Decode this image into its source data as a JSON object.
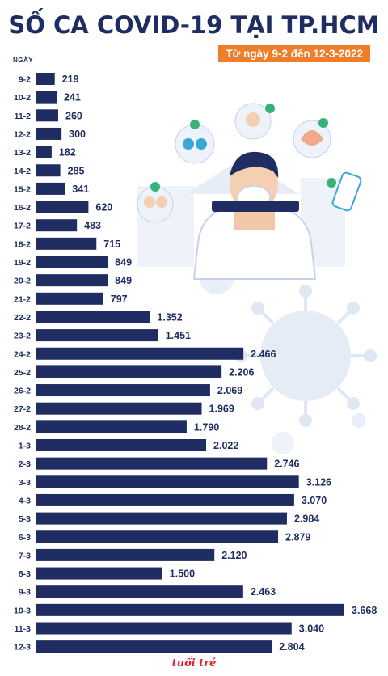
{
  "title": "SỐ CA COVID-19 TẠI TP.HCM",
  "subtitle": "Từ ngày 9-2 đến 12-3-2022",
  "colors": {
    "title": "#1f2d63",
    "bar": "#1f2d63",
    "subtitle_bg": "#ee7e2a",
    "illustration_light": "#dfe7f3",
    "logo": "#e5202e"
  },
  "logo": {
    "text": "tuổi trẻ"
  },
  "chart_data": {
    "type": "bar",
    "orientation": "horizontal",
    "axis_label": "NGÀY",
    "categories": [
      "9-2",
      "10-2",
      "11-2",
      "12-2",
      "13-2",
      "14-2",
      "15-2",
      "16-2",
      "17-2",
      "18-2",
      "19-2",
      "20-2",
      "21-2",
      "22-2",
      "23-2",
      "24-2",
      "25-2",
      "26-2",
      "27-2",
      "28-2",
      "1-3",
      "2-3",
      "3-3",
      "4-3",
      "5-3",
      "6-3",
      "7-3",
      "8-3",
      "9-3",
      "10-3",
      "11-3",
      "12-3"
    ],
    "values": [
      219,
      241,
      260,
      300,
      182,
      285,
      341,
      620,
      483,
      715,
      849,
      849,
      797,
      1352,
      1451,
      2466,
      2206,
      2069,
      1969,
      1790,
      2022,
      2746,
      3126,
      3070,
      2984,
      2879,
      2120,
      1500,
      2463,
      3668,
      3040,
      2804
    ],
    "labels": [
      "219",
      "241",
      "260",
      "300",
      "182",
      "285",
      "341",
      "620",
      "483",
      "715",
      "849",
      "849",
      "797",
      "1.352",
      "1.451",
      "2.466",
      "2.206",
      "2.069",
      "1.969",
      "1.790",
      "2.022",
      "2.746",
      "3.126",
      "3.070",
      "2.984",
      "2.879",
      "2.120",
      "1.500",
      "2.463",
      "3.668",
      "3.040",
      "2.804"
    ],
    "xlim": [
      0,
      3668
    ],
    "grid": false,
    "legend": "none"
  }
}
